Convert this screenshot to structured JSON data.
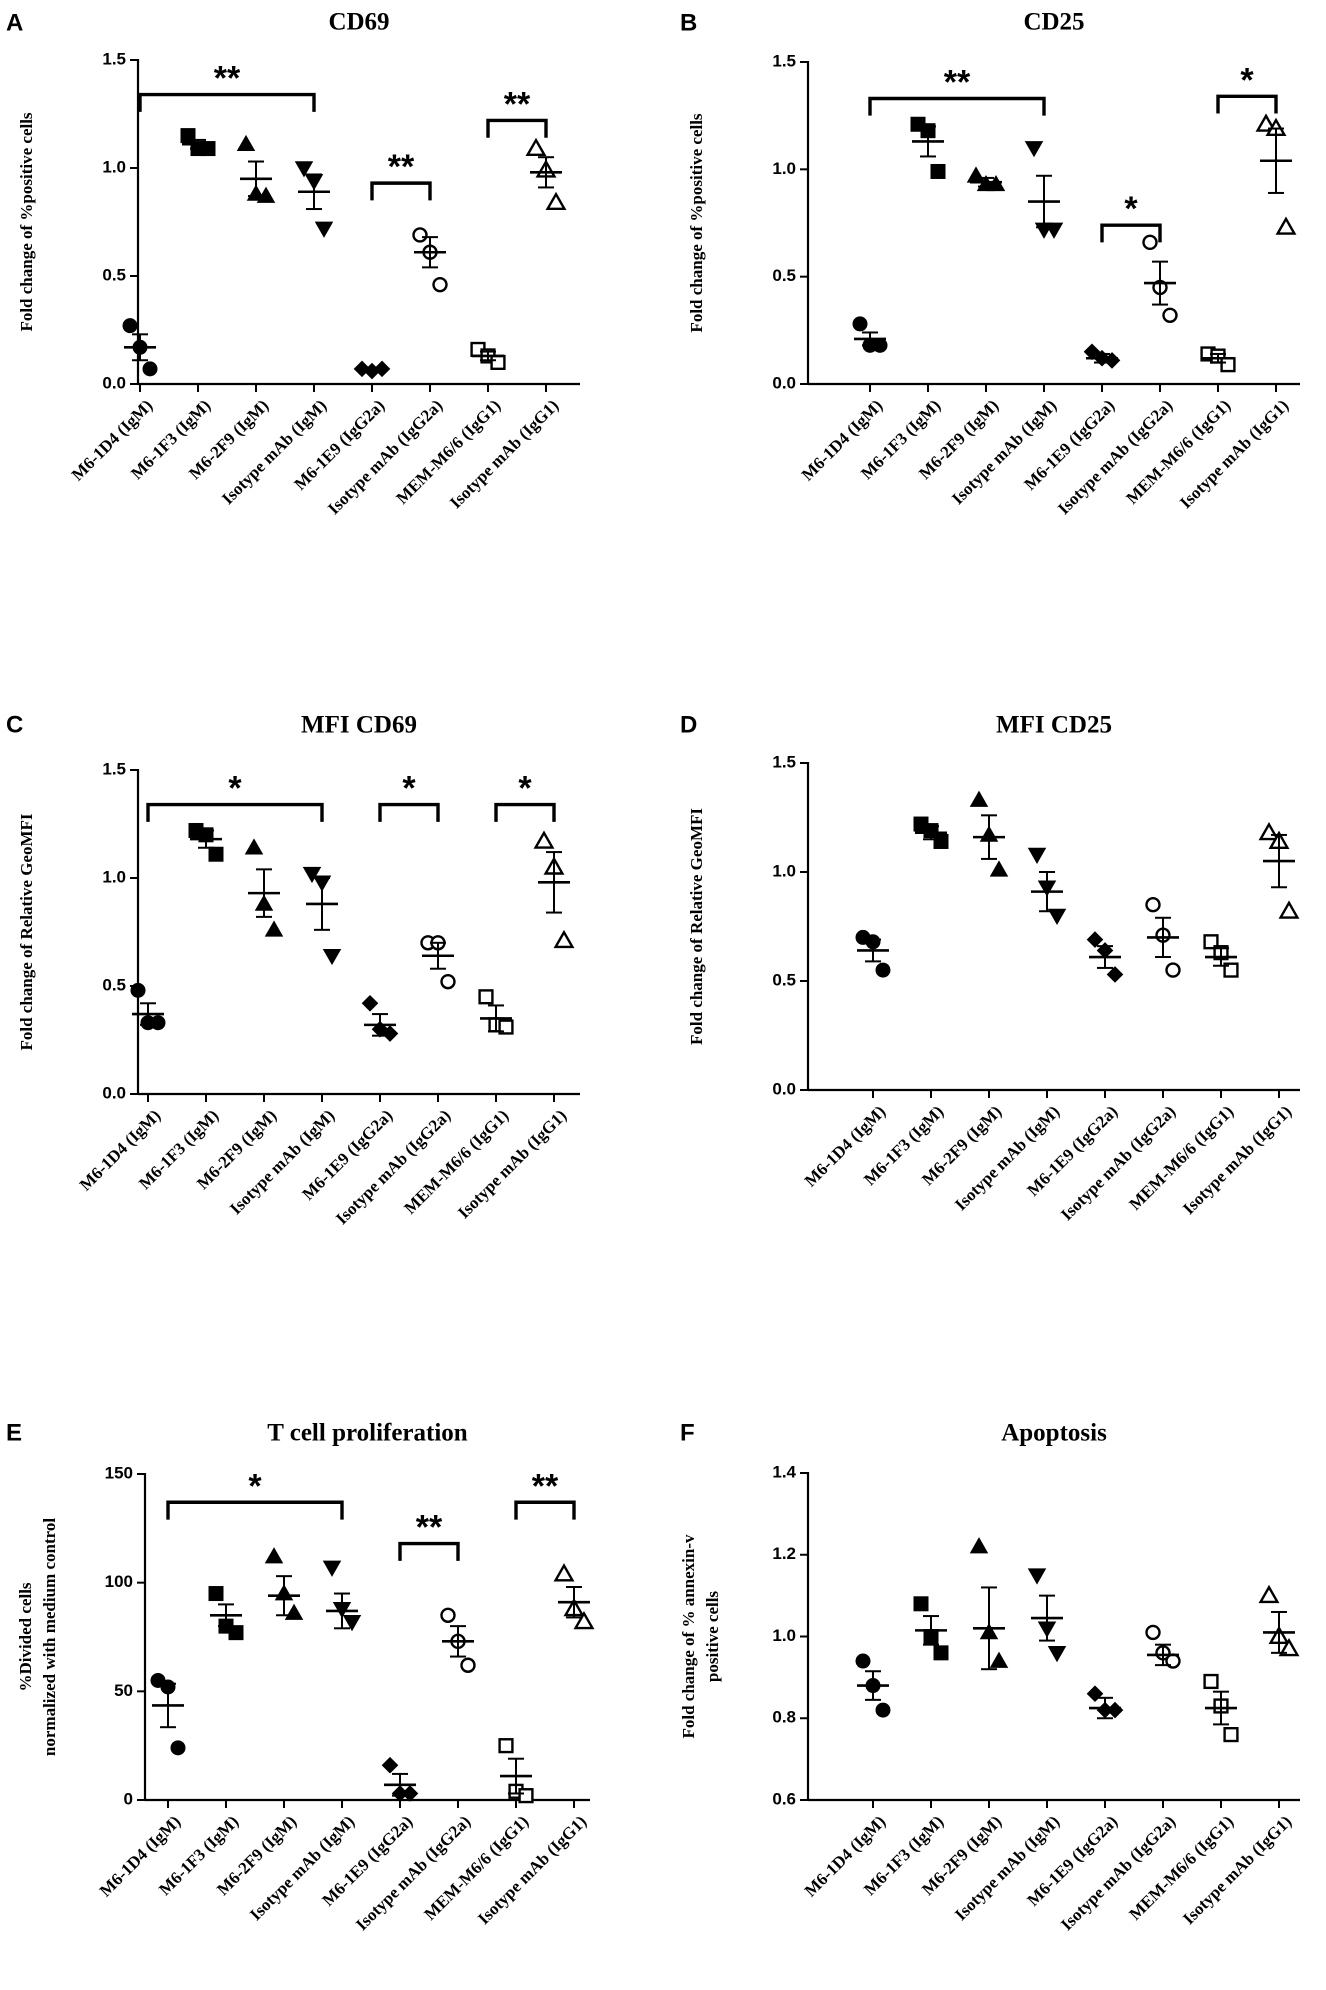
{
  "figure": {
    "background": "#ffffff",
    "ink": "#000000"
  },
  "chart_data": [
    {
      "type": "scatter",
      "panel": "A",
      "title": "CD69",
      "ylabel": [
        "Fold change of %positive cells"
      ],
      "ylim": [
        0,
        1.5
      ],
      "yticks": [
        "0.0",
        "0.5",
        "1.0",
        "1.5"
      ],
      "categories": [
        "M6-1D4 (IgM)",
        "M6-1F3 (IgM)",
        "M6-2F9 (IgM)",
        "Isotype mAb (IgM)",
        "M6-1E9 (IgG2a)",
        "Isotype mAb (IgG2a)",
        "MEM-M6/6  (IgG1)",
        "Isotype mAb (IgG1)"
      ],
      "markers": [
        "circle-filled",
        "square-filled",
        "triangle-filled",
        "triangle-down-filled",
        "diamond-filled",
        "circle-open",
        "square-open",
        "triangle-open"
      ],
      "points": [
        [
          0.27,
          0.17,
          0.07
        ],
        [
          1.15,
          1.09,
          1.09
        ],
        [
          1.11,
          0.88,
          0.87
        ],
        [
          1.0,
          0.94,
          0.72
        ],
        [
          0.07,
          0.06,
          0.07
        ],
        [
          0.69,
          0.61,
          0.46
        ],
        [
          0.16,
          0.13,
          0.1
        ],
        [
          1.09,
          0.99,
          0.84
        ]
      ],
      "mean": [
        0.17,
        1.11,
        0.95,
        0.89,
        0.067,
        0.61,
        0.13,
        0.98
      ],
      "sem": [
        0.06,
        0.02,
        0.08,
        0.08,
        0.005,
        0.07,
        0.02,
        0.07
      ],
      "significance": [
        {
          "from": 0,
          "to": 3,
          "label": "**",
          "bar_y": 1.34,
          "leg": 0.08
        },
        {
          "from": 4,
          "to": 5,
          "label": "**",
          "bar_y": 0.93,
          "leg": 0.08
        },
        {
          "from": 6,
          "to": 7,
          "label": "**",
          "bar_y": 1.22,
          "leg": 0.08
        }
      ]
    },
    {
      "type": "scatter",
      "panel": "B",
      "title": "CD25",
      "ylabel": [
        "Fold change of %positive cells"
      ],
      "ylim": [
        0,
        1.5
      ],
      "yticks": [
        "0.0",
        "0.5",
        "1.0",
        "1.5"
      ],
      "categories": [
        "M6-1D4 (IgM)",
        "M6-1F3 (IgM)",
        "M6-2F9 (IgM)",
        "Isotype mAb (IgM)",
        "M6-1E9 (IgG2a)",
        "Isotype mAb (IgG2a)",
        "MEM-M6/6  (IgG1)",
        "Isotype mAb (IgG1)"
      ],
      "markers": [
        "circle-filled",
        "square-filled",
        "triangle-filled",
        "triangle-down-filled",
        "diamond-filled",
        "circle-open",
        "square-open",
        "triangle-open"
      ],
      "points": [
        [
          0.28,
          0.18,
          0.18
        ],
        [
          1.21,
          1.18,
          0.99
        ],
        [
          0.97,
          0.93,
          0.93
        ],
        [
          1.1,
          0.72,
          0.72
        ],
        [
          0.15,
          0.12,
          0.11
        ],
        [
          0.66,
          0.45,
          0.32
        ],
        [
          0.14,
          0.13,
          0.09
        ],
        [
          1.21,
          1.19,
          0.73
        ]
      ],
      "mean": [
        0.21,
        1.13,
        0.94,
        0.85,
        0.12,
        0.47,
        0.12,
        1.04
      ],
      "sem": [
        0.03,
        0.07,
        0.02,
        0.12,
        0.02,
        0.1,
        0.02,
        0.15
      ],
      "significance": [
        {
          "from": 0,
          "to": 3,
          "label": "**",
          "bar_y": 1.33,
          "leg": 0.08
        },
        {
          "from": 4,
          "to": 5,
          "label": "*",
          "bar_y": 0.74,
          "leg": 0.08
        },
        {
          "from": 6,
          "to": 7,
          "label": "*",
          "bar_y": 1.34,
          "leg": 0.08
        }
      ]
    },
    {
      "type": "scatter",
      "panel": "C",
      "title": "MFI CD69",
      "ylabel": [
        "Fold change of Relative GeoMFI"
      ],
      "ylim": [
        0,
        1.5
      ],
      "yticks": [
        "0.0",
        "0.5",
        "1.0",
        "1.5"
      ],
      "categories": [
        "M6-1D4 (IgM)",
        "M6-1F3 (IgM)",
        "M6-2F9 (IgM)",
        "Isotype mAb (IgM)",
        "M6-1E9 (IgG2a)",
        "Isotype mAb (IgG2a)",
        "MEM-M6/6  (IgG1)",
        "Isotype mAb (IgG1)"
      ],
      "markers": [
        "circle-filled",
        "square-filled",
        "triangle-filled",
        "triangle-down-filled",
        "diamond-filled",
        "circle-open",
        "square-open",
        "triangle-open"
      ],
      "points": [
        [
          0.48,
          0.33,
          0.33
        ],
        [
          1.22,
          1.2,
          1.11
        ],
        [
          1.14,
          0.88,
          0.76
        ],
        [
          1.02,
          0.98,
          0.64
        ],
        [
          0.42,
          0.3,
          0.28
        ],
        [
          0.7,
          0.7,
          0.52
        ],
        [
          0.45,
          0.32,
          0.31
        ],
        [
          1.17,
          1.05,
          0.71
        ]
      ],
      "mean": [
        0.37,
        1.18,
        0.93,
        0.88,
        0.32,
        0.64,
        0.35,
        0.98
      ],
      "sem": [
        0.05,
        0.04,
        0.11,
        0.12,
        0.05,
        0.06,
        0.06,
        0.14
      ],
      "significance": [
        {
          "from": 0,
          "to": 3,
          "label": "*",
          "bar_y": 1.34,
          "leg": 0.08
        },
        {
          "from": 4,
          "to": 5,
          "label": "*",
          "bar_y": 1.34,
          "leg": 0.08
        },
        {
          "from": 6,
          "to": 7,
          "label": "*",
          "bar_y": 1.34,
          "leg": 0.08
        }
      ]
    },
    {
      "type": "scatter",
      "panel": "D",
      "title": "MFI CD25",
      "ylabel": [
        "Fold change of Relative GeoMFI"
      ],
      "ylim": [
        0,
        1.5
      ],
      "yticks": [
        "0.0",
        "0.5",
        "1.0",
        "1.5"
      ],
      "categories": [
        "M6-1D4 (IgM)",
        "M6-1F3 (IgM)",
        "M6-2F9 (IgM)",
        "Isotype mAb (IgM)",
        "M6-1E9 (IgG2a)",
        "Isotype mAb (IgG2a)",
        "MEM-M6/6  (IgG1)",
        "Isotype mAb (IgG1)"
      ],
      "markers": [
        "circle-filled",
        "square-filled",
        "triangle-filled",
        "triangle-down-filled",
        "diamond-filled",
        "circle-open",
        "square-open",
        "triangle-open"
      ],
      "points": [
        [
          0.7,
          0.68,
          0.55
        ],
        [
          1.22,
          1.19,
          1.14
        ],
        [
          1.33,
          1.17,
          1.01
        ],
        [
          1.08,
          0.93,
          0.8
        ],
        [
          0.69,
          0.64,
          0.53
        ],
        [
          0.85,
          0.71,
          0.55
        ],
        [
          0.68,
          0.63,
          0.55
        ],
        [
          1.18,
          1.14,
          0.82
        ]
      ],
      "mean": [
        0.64,
        1.18,
        1.16,
        0.91,
        0.61,
        0.7,
        0.61,
        1.05
      ],
      "sem": [
        0.05,
        0.03,
        0.1,
        0.09,
        0.05,
        0.09,
        0.04,
        0.12
      ],
      "significance": []
    },
    {
      "type": "scatter",
      "panel": "E",
      "title": "T cell proliferation",
      "ylabel": [
        "%Divided cells",
        "normalized with medium control"
      ],
      "ylim": [
        0,
        150
      ],
      "yticks": [
        "0",
        "50",
        "100",
        "150"
      ],
      "categories": [
        "M6-1D4 (IgM)",
        "M6-1F3 (IgM)",
        "M6-2F9 (IgM)",
        "Isotype mAb (IgM)",
        "M6-1E9 (IgG2a)",
        "Isotype mAb (IgG2a)",
        "MEM-M6/6  (IgG1)",
        "Isotype mAb (IgG1)"
      ],
      "markers": [
        "circle-filled",
        "square-filled",
        "triangle-filled",
        "triangle-down-filled",
        "diamond-filled",
        "circle-open",
        "square-open",
        "triangle-open"
      ],
      "points": [
        [
          55,
          52,
          24
        ],
        [
          95,
          80,
          77
        ],
        [
          112,
          95,
          86
        ],
        [
          107,
          88,
          82
        ],
        [
          16,
          3,
          3
        ],
        [
          85,
          73,
          62
        ],
        [
          25,
          4,
          2
        ],
        [
          104,
          88,
          82
        ]
      ],
      "mean": [
        43.5,
        85,
        94,
        87,
        7,
        73,
        11,
        91
      ],
      "sem": [
        10,
        5,
        9,
        8,
        5,
        7,
        8,
        7
      ],
      "significance": [
        {
          "from": 0,
          "to": 3,
          "label": "*",
          "bar_y": 137,
          "leg": 8
        },
        {
          "from": 4,
          "to": 5,
          "label": "**",
          "bar_y": 118,
          "leg": 8
        },
        {
          "from": 6,
          "to": 7,
          "label": "**",
          "bar_y": 137,
          "leg": 8
        }
      ]
    },
    {
      "type": "scatter",
      "panel": "F",
      "title": "Apoptosis",
      "ylabel": [
        "Fold change of % annexin-v",
        "positive cells"
      ],
      "ylim": [
        0.6,
        1.4
      ],
      "yticks": [
        "0.6",
        "0.8",
        "1.0",
        "1.2",
        "1.4"
      ],
      "categories": [
        "M6-1D4 (IgM)",
        "M6-1F3 (IgM)",
        "M6-2F9 (IgM)",
        "Isotype mAb (IgM)",
        "M6-1E9 (IgG2a)",
        "Isotype mAb (IgG2a)",
        "MEM-M6/6  (IgG1)",
        "Isotype mAb (IgG1)"
      ],
      "markers": [
        "circle-filled",
        "square-filled",
        "triangle-filled",
        "triangle-down-filled",
        "diamond-filled",
        "circle-open",
        "square-open",
        "triangle-open"
      ],
      "points": [
        [
          0.94,
          0.88,
          0.82
        ],
        [
          1.08,
          1.0,
          0.96
        ],
        [
          1.22,
          1.01,
          0.94
        ],
        [
          1.15,
          1.02,
          0.96
        ],
        [
          0.86,
          0.82,
          0.82
        ],
        [
          1.01,
          0.96,
          0.94
        ],
        [
          0.89,
          0.83,
          0.76
        ],
        [
          1.1,
          1.0,
          0.97
        ]
      ],
      "mean": [
        0.88,
        1.015,
        1.02,
        1.045,
        0.825,
        0.955,
        0.825,
        1.01
      ],
      "sem": [
        0.035,
        0.035,
        0.1,
        0.055,
        0.025,
        0.025,
        0.04,
        0.05
      ],
      "significance": []
    }
  ]
}
